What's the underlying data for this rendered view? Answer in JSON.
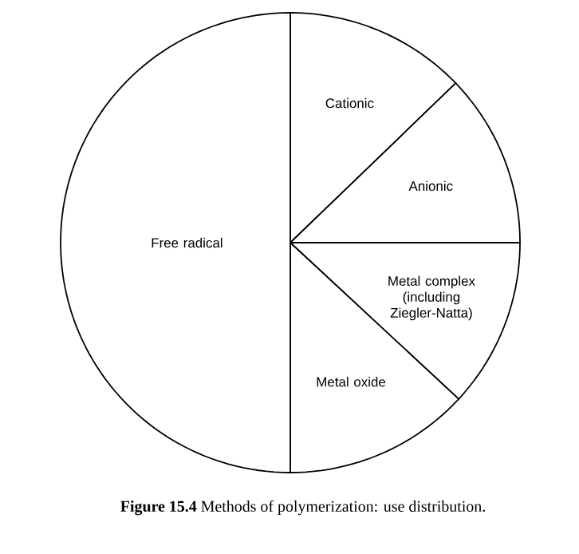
{
  "chart_data": {
    "type": "pie",
    "title": "**Figure 15.4**  Methods of polymerization: use distribution.",
    "categories": [
      "Cationic",
      "Anionic",
      "Metal complex (including Ziegler-Natta)",
      "Metal oxide",
      "Free radical"
    ],
    "values": [
      12.8,
      12.2,
      11.9,
      13.1,
      50
    ],
    "colors": [
      "#ffffff",
      "#ffffff",
      "#ffffff",
      "#ffffff",
      "#ffffff"
    ]
  }
}
